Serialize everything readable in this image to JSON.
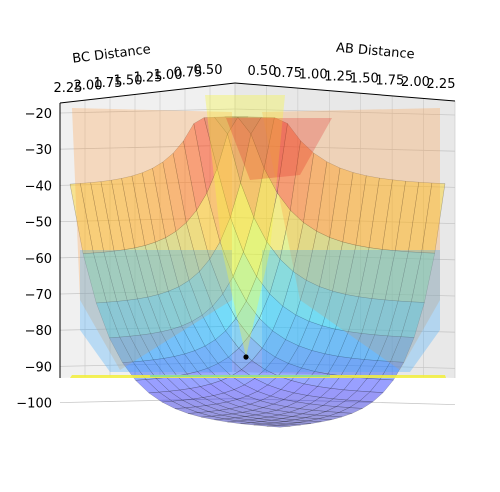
{
  "chart_data": {
    "type": "surface3d",
    "title": "",
    "xlabel": "AB Distance",
    "ylabel": "BC Distance",
    "zlabel": "",
    "x_ticks": [
      "0.50",
      "0.75",
      "1.00",
      "1.25",
      "1.50",
      "1.75",
      "2.00",
      "2.25"
    ],
    "y_ticks": [
      "2.25",
      "2.00",
      "1.75",
      "1.50",
      "1.25",
      "1.00",
      "0.75",
      "0.50"
    ],
    "z_ticks": [
      "−20",
      "−30",
      "−40",
      "−50",
      "−60",
      "−70",
      "−80",
      "−90",
      "−100"
    ],
    "xlim": [
      0.5,
      2.25
    ],
    "ylim": [
      0.5,
      2.25
    ],
    "zlim": [
      -105,
      -20
    ],
    "colormap": "jet",
    "surface_alpha": 0.4,
    "grid": true,
    "marked_point": {
      "x": 2.25,
      "y": 2.25,
      "z": -103
    },
    "colors": {
      "pane": "#f0f0f0",
      "grid": "#c8c8c8",
      "surface_edge": "#222222",
      "contour_floor": "#f2ee3a",
      "point": "#000000"
    }
  }
}
